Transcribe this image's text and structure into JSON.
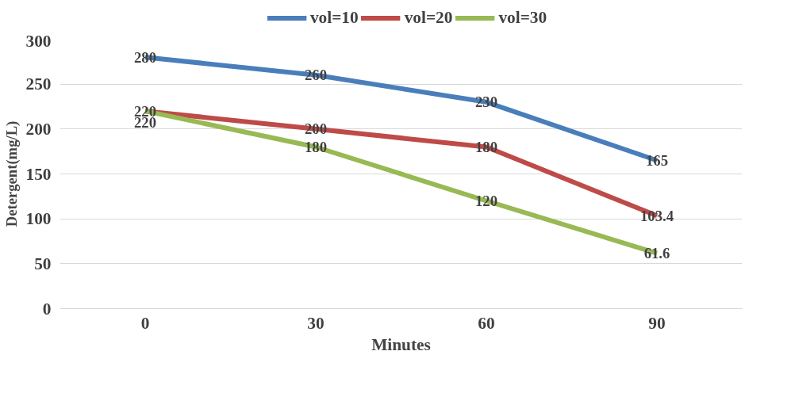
{
  "chart_data": {
    "type": "line",
    "xlabel": "Minutes",
    "ylabel": "Detergent(mg/L)",
    "categories": [
      "0",
      "30",
      "60",
      "90"
    ],
    "series": [
      {
        "name": "vol=10",
        "color": "#4a7ebb",
        "values": [
          280,
          260,
          230,
          165
        ]
      },
      {
        "name": "vol=20",
        "color": "#be4b48",
        "values": [
          220,
          200,
          180,
          103.4
        ]
      },
      {
        "name": "vol=30",
        "color": "#98b954",
        "values": [
          220,
          180,
          120,
          61.6
        ]
      }
    ],
    "ylim": [
      0,
      300
    ],
    "yticks": [
      0,
      50,
      100,
      150,
      200,
      250,
      300
    ],
    "grid": "y",
    "legend": "top",
    "data_labels": true,
    "marker": "none",
    "line_style": "solid"
  }
}
